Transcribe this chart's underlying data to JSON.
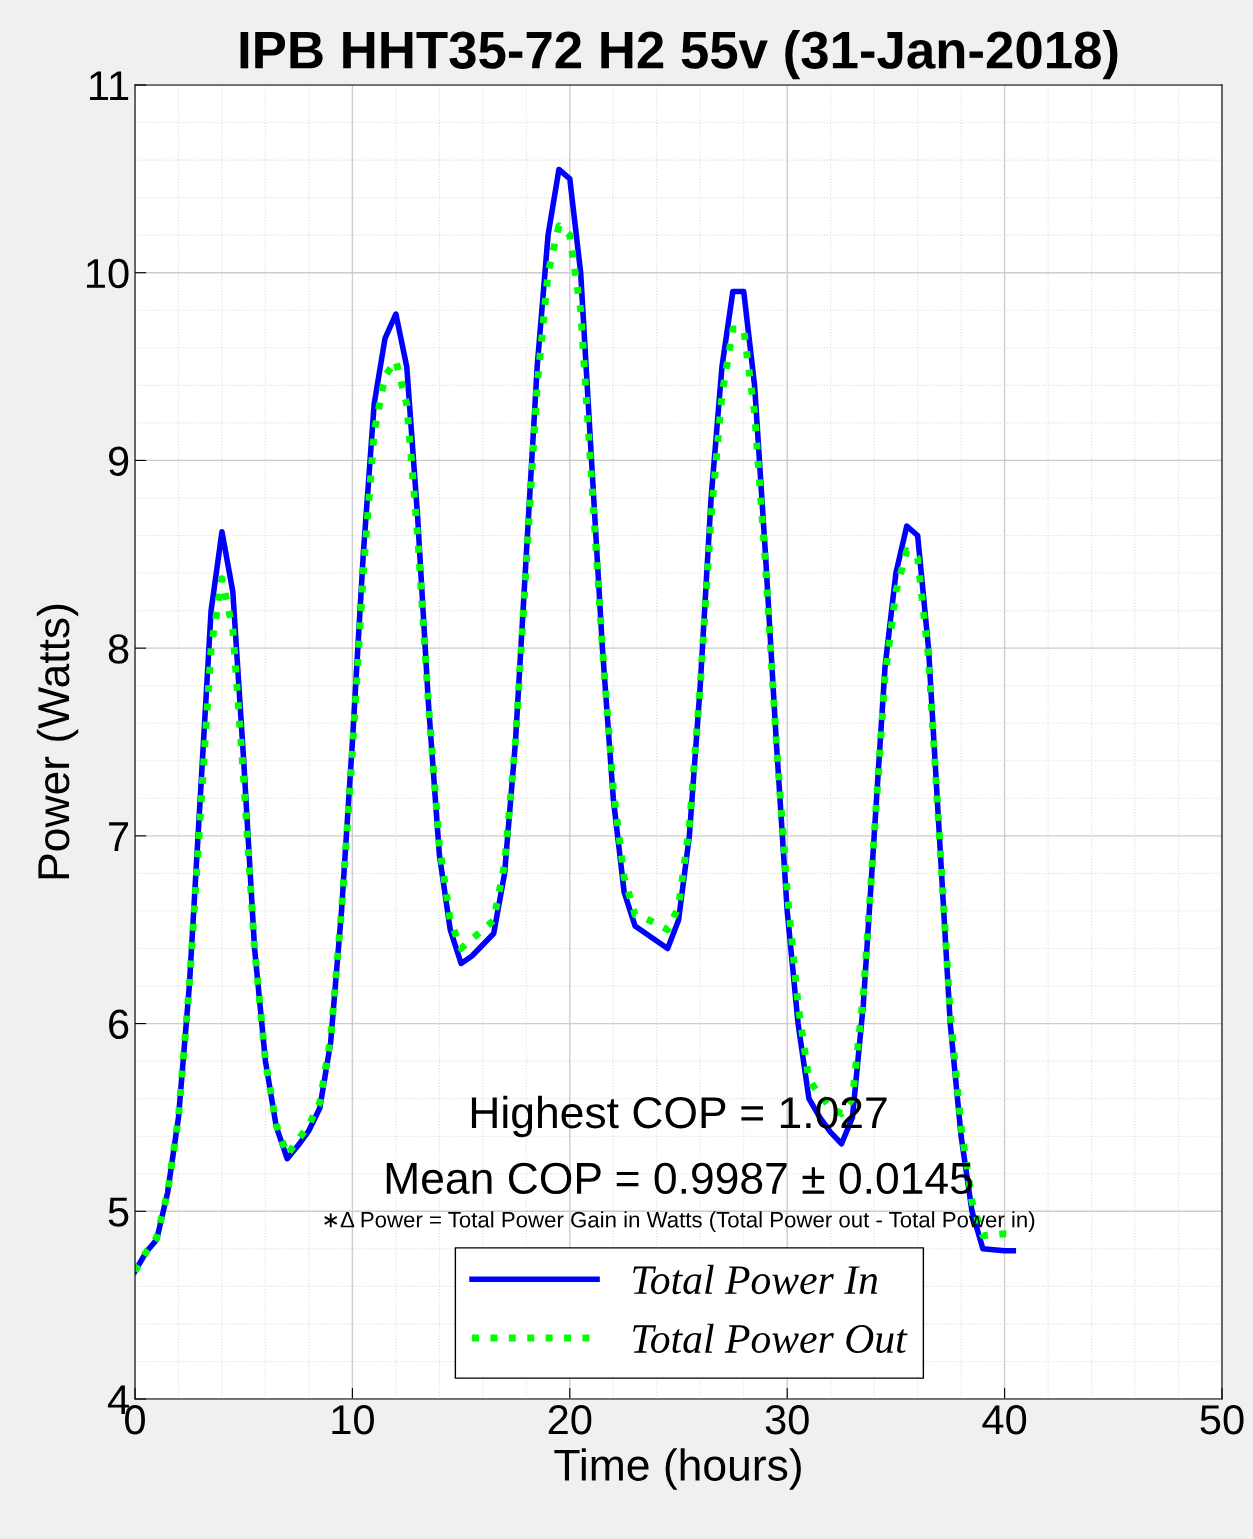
{
  "chart_data": {
    "type": "line",
    "title": "IPB HHT35-72 H2 55v (31-Jan-2018)",
    "xlabel": "Time (hours)",
    "ylabel": "Power (Watts)",
    "xlim": [
      0,
      50
    ],
    "ylim": [
      4,
      11
    ],
    "xticks": [
      0,
      10,
      20,
      30,
      40,
      50
    ],
    "yticks": [
      4,
      5,
      6,
      7,
      8,
      9,
      10,
      11
    ],
    "grid": true,
    "legend": "bottom",
    "x": [
      0,
      0.5,
      1,
      1.5,
      2,
      2.5,
      3,
      3.5,
      4,
      4.5,
      5,
      5.5,
      6,
      6.5,
      7,
      7.5,
      8,
      8.5,
      9,
      9.5,
      10,
      10.5,
      11,
      11.5,
      12,
      12.5,
      13,
      13.5,
      14,
      14.5,
      15,
      15.5,
      16,
      16.5,
      17,
      17.5,
      18,
      18.5,
      19,
      19.5,
      20,
      20.5,
      21,
      21.5,
      22,
      22.5,
      23,
      23.5,
      24,
      24.5,
      25,
      25.5,
      26,
      26.5,
      27,
      27.5,
      28,
      28.5,
      29,
      29.5,
      30,
      30.5,
      31,
      31.5,
      32,
      32.5,
      33,
      33.5,
      34,
      34.5,
      35,
      35.5,
      36,
      36.5,
      37,
      37.5,
      38,
      38.5,
      39,
      40,
      40.4
    ],
    "series": [
      {
        "name": "Total Power In",
        "color": "#0000ff",
        "line_style": "solid",
        "values": [
          4.68,
          4.78,
          4.85,
          5.1,
          5.5,
          6.2,
          7.2,
          8.2,
          8.62,
          8.3,
          7.4,
          6.4,
          5.8,
          5.45,
          5.28,
          5.35,
          5.43,
          5.55,
          5.9,
          6.6,
          7.5,
          8.5,
          9.3,
          9.65,
          9.78,
          9.5,
          8.7,
          7.7,
          6.9,
          6.5,
          6.32,
          6.36,
          6.42,
          6.48,
          6.8,
          7.5,
          8.5,
          9.5,
          10.2,
          10.55,
          10.5,
          10.0,
          9.0,
          8.0,
          7.2,
          6.7,
          6.52,
          6.48,
          6.44,
          6.4,
          6.55,
          7.0,
          7.8,
          8.8,
          9.5,
          9.9,
          9.9,
          9.4,
          8.5,
          7.5,
          6.6,
          6.0,
          5.6,
          5.5,
          5.42,
          5.36,
          5.5,
          6.1,
          7.0,
          7.9,
          8.4,
          8.65,
          8.6,
          8.0,
          7.0,
          6.0,
          5.4,
          5.0,
          4.8,
          4.79,
          4.79
        ]
      },
      {
        "name": "Total Power Out",
        "color": "#00ff00",
        "line_style": "dotted",
        "values": [
          4.68,
          4.78,
          4.86,
          5.1,
          5.5,
          6.2,
          7.1,
          8.0,
          8.37,
          8.1,
          7.3,
          6.4,
          5.8,
          5.46,
          5.3,
          5.38,
          5.46,
          5.58,
          5.92,
          6.6,
          7.45,
          8.4,
          9.15,
          9.45,
          9.53,
          9.3,
          8.6,
          7.7,
          6.95,
          6.55,
          6.4,
          6.45,
          6.5,
          6.55,
          6.85,
          7.5,
          8.45,
          9.4,
          10.0,
          10.25,
          10.2,
          9.8,
          8.9,
          8.0,
          7.25,
          6.78,
          6.58,
          6.56,
          6.53,
          6.5,
          6.62,
          7.05,
          7.8,
          8.7,
          9.35,
          9.7,
          9.7,
          9.25,
          8.45,
          7.5,
          6.7,
          6.1,
          5.7,
          5.62,
          5.55,
          5.52,
          5.6,
          6.15,
          7.0,
          7.85,
          8.3,
          8.52,
          8.48,
          7.95,
          7.0,
          6.05,
          5.45,
          5.05,
          4.87,
          4.88,
          4.88
        ]
      }
    ],
    "annotations": [
      "Highest COP = 1.027",
      "Mean COP = 0.9987 ± 0.0145",
      "∗Δ Power = Total Power Gain in Watts (Total Power out - Total Power in)"
    ]
  }
}
